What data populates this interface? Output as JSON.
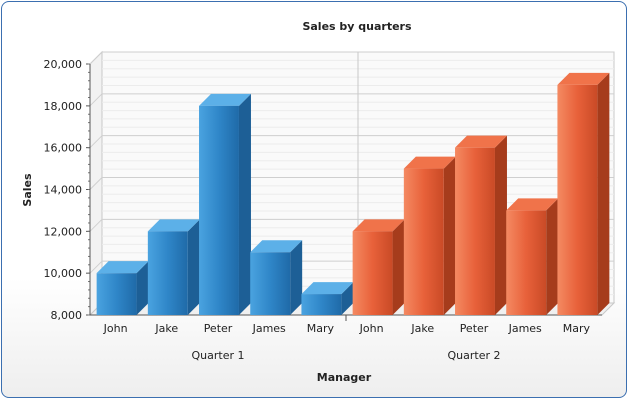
{
  "chart_data": {
    "type": "bar",
    "title": "Sales by quarters",
    "xlabel": "Manager",
    "ylabel": "Sales",
    "ylim": [
      8000,
      20000
    ],
    "yticks": [
      "8,000",
      "10,000",
      "12,000",
      "14,000",
      "16,000",
      "18,000",
      "20,000"
    ],
    "grid": true,
    "groups": [
      {
        "name": "Quarter 1",
        "color": "#2f86c8",
        "categories": [
          "John",
          "Jake",
          "Peter",
          "James",
          "Mary"
        ],
        "values": [
          10000,
          12000,
          18000,
          11000,
          9000
        ]
      },
      {
        "name": "Quarter 2",
        "color": "#e8613a",
        "categories": [
          "John",
          "Jake",
          "Peter",
          "James",
          "Mary"
        ],
        "values": [
          12000,
          15000,
          16000,
          13000,
          19000
        ]
      }
    ]
  }
}
